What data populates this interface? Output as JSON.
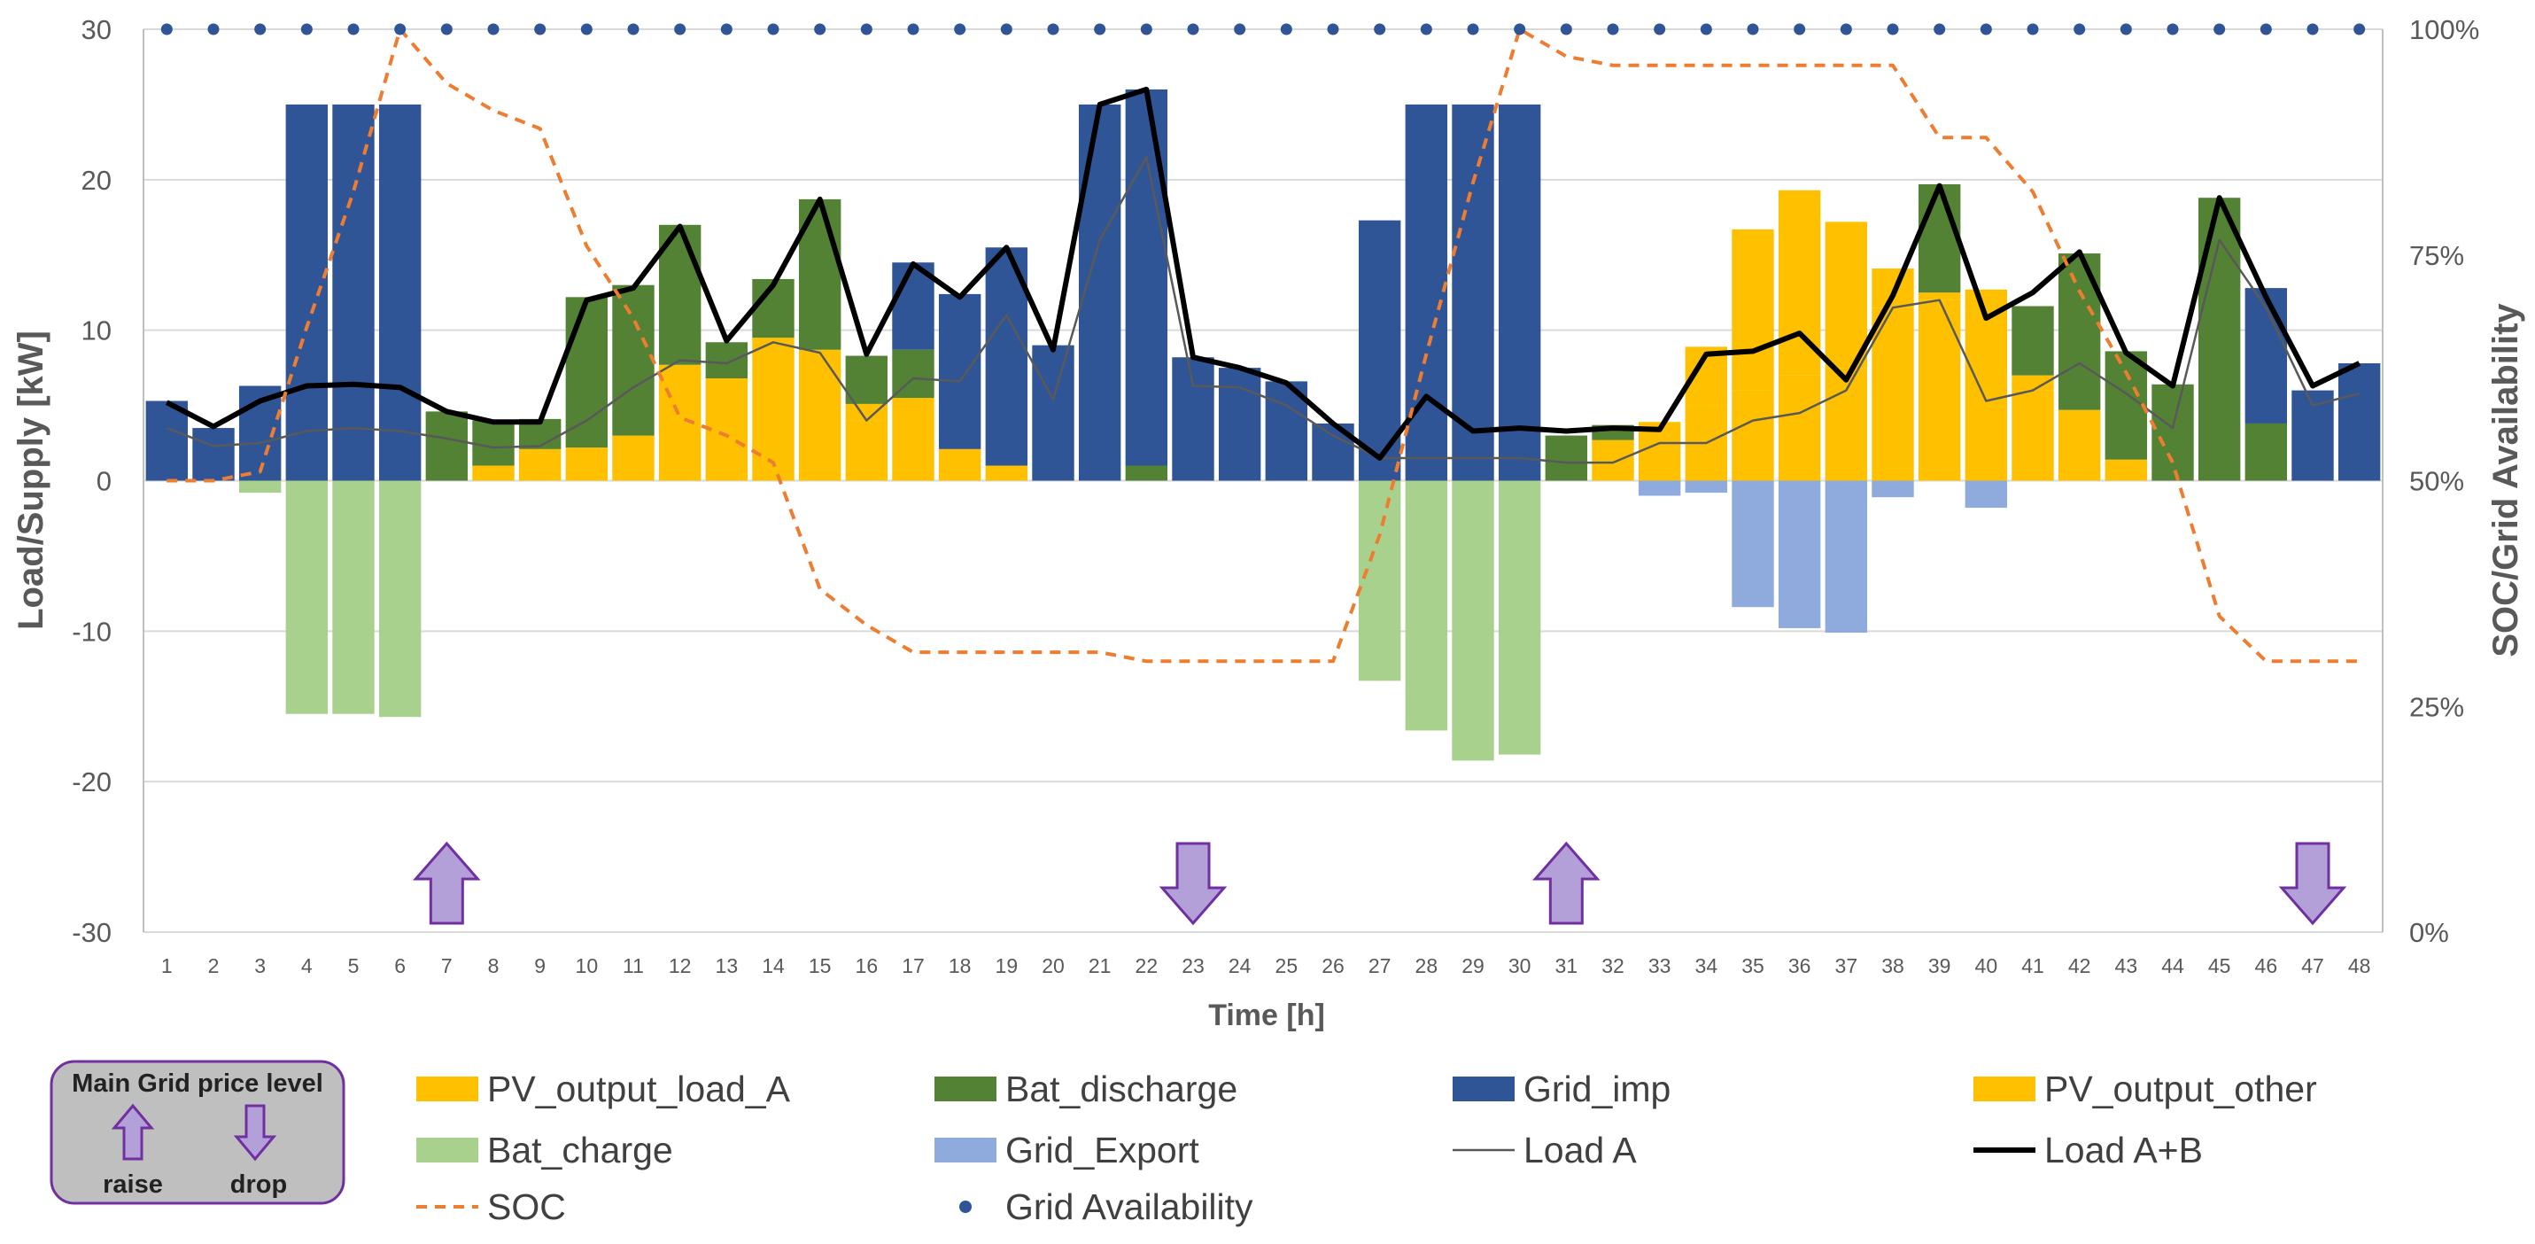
{
  "chart_data": {
    "type": "bar",
    "xlabel": "Time [h]",
    "ylabel": "Load/Supply [kW]",
    "y2label": "SOC/Grid Availability",
    "ylim": [
      -30,
      30
    ],
    "y2lim": [
      0,
      100
    ],
    "y_ticks": [
      "-30",
      "-20",
      "-10",
      "0",
      "10",
      "20",
      "30"
    ],
    "y2_ticks": [
      "0%",
      "25%",
      "50%",
      "75%",
      "100%"
    ],
    "categories": [
      "1",
      "2",
      "3",
      "4",
      "5",
      "6",
      "7",
      "8",
      "9",
      "10",
      "11",
      "12",
      "13",
      "14",
      "15",
      "16",
      "17",
      "18",
      "19",
      "20",
      "21",
      "22",
      "23",
      "24",
      "25",
      "26",
      "27",
      "28",
      "29",
      "30",
      "31",
      "32",
      "33",
      "34",
      "35",
      "36",
      "37",
      "38",
      "39",
      "40",
      "41",
      "42",
      "43",
      "44",
      "45",
      "46",
      "47",
      "48"
    ],
    "stack_positive": [
      {
        "name": "PV_output_load_A",
        "color": "#FFC000",
        "values": [
          0,
          0,
          0,
          0,
          0,
          0,
          0,
          1,
          1.8,
          2.2,
          3,
          7.7,
          6.8,
          9.5,
          8.7,
          4,
          5.5,
          2.1,
          1,
          0,
          0,
          0,
          0,
          0,
          0,
          0,
          0,
          0,
          0,
          0,
          0,
          1.5,
          3,
          5,
          6,
          7,
          7.5,
          11.5,
          12,
          11.3,
          6,
          4.7,
          1.4,
          0,
          0,
          0,
          0,
          0
        ]
      },
      {
        "name": "PV_output_other",
        "color": "#FFC000",
        "values": [
          0,
          0,
          0,
          0,
          0,
          0,
          0,
          0,
          0.3,
          0,
          0,
          0,
          0,
          0,
          0,
          1.1,
          0,
          0,
          0,
          0,
          0,
          0,
          0,
          0,
          0,
          0,
          0,
          0,
          0,
          0,
          0,
          1.2,
          0.9,
          3.9,
          10.7,
          12.3,
          9.7,
          2.6,
          0.5,
          1.4,
          1,
          0,
          0,
          0,
          0,
          0,
          0,
          0
        ]
      },
      {
        "name": "Bat_discharge",
        "color": "#548235",
        "values": [
          0,
          0,
          0,
          0,
          0,
          0,
          4.6,
          3,
          2,
          10,
          10,
          9.3,
          2.4,
          3.9,
          10,
          3.2,
          3.2,
          0,
          0,
          0,
          0,
          1,
          0,
          0,
          0,
          0,
          0,
          0,
          0,
          0,
          3,
          1,
          0,
          0,
          0,
          0,
          0,
          0,
          7.2,
          0,
          4.6,
          10.4,
          7.2,
          6.4,
          18.8,
          3.8,
          0,
          0
        ]
      },
      {
        "name": "Grid_imp",
        "color": "#2F5597",
        "values": [
          5.3,
          3.5,
          6.3,
          25,
          25,
          25,
          0,
          0,
          0,
          0,
          0,
          0,
          0,
          0,
          0,
          0,
          5.8,
          10.3,
          14.5,
          9,
          25,
          25,
          8.2,
          7.5,
          6.6,
          3.8,
          17.3,
          25,
          25,
          25,
          0,
          0,
          0,
          0,
          0,
          0,
          0,
          0,
          0,
          0,
          0,
          0,
          0,
          0,
          0,
          9,
          6,
          7.8
        ]
      }
    ],
    "stack_negative": [
      {
        "name": "Bat_charge",
        "color": "#A9D18E",
        "values": [
          0,
          0,
          -0.8,
          -15.5,
          -15.5,
          -15.7,
          0,
          0,
          0,
          0,
          0,
          0,
          0,
          0,
          0,
          0,
          0,
          0,
          0,
          0,
          0,
          0,
          0,
          0,
          0,
          0,
          -13.3,
          -16.6,
          -18.6,
          -18.2,
          0,
          0,
          0,
          0,
          0,
          0,
          0,
          0,
          0,
          0,
          0,
          0,
          0,
          0,
          0,
          0,
          0,
          0
        ]
      },
      {
        "name": "Grid_Export",
        "color": "#8FAADC",
        "values": [
          0,
          0,
          0,
          0,
          0,
          0,
          0,
          0,
          0,
          0,
          0,
          0,
          0,
          0,
          0,
          0,
          0,
          0,
          0,
          0,
          0,
          0,
          0,
          0,
          0,
          0,
          0,
          0,
          0,
          0,
          0,
          0,
          -1,
          -0.8,
          -8.4,
          -9.8,
          -10.1,
          -1.1,
          0,
          -1.8,
          0,
          0,
          0,
          0,
          0,
          0,
          0,
          0
        ]
      }
    ],
    "lines": [
      {
        "name": "Load A",
        "color": "#595959",
        "axis": "left",
        "values": [
          3.5,
          2.3,
          2.5,
          3.3,
          3.5,
          3.3,
          2.8,
          2.2,
          2.3,
          4,
          6.2,
          8,
          7.8,
          9.2,
          8.5,
          4,
          6.8,
          6.6,
          11,
          5.4,
          16,
          21.5,
          6.3,
          6.2,
          5,
          3,
          1.5,
          1.5,
          1.5,
          1.5,
          1.2,
          1.2,
          2.5,
          2.5,
          4,
          4.5,
          6,
          11.5,
          12,
          5.3,
          6,
          7.8,
          5.8,
          3.5,
          16,
          11.5,
          5,
          5.8
        ]
      },
      {
        "name": "Load A+B",
        "color": "#000000",
        "axis": "left",
        "values": [
          5.2,
          3.6,
          5.3,
          6.3,
          6.4,
          6.2,
          4.6,
          3.9,
          3.9,
          12,
          12.8,
          16.9,
          9.3,
          13,
          18.7,
          8.4,
          14.4,
          12.2,
          15.5,
          8.7,
          25,
          26,
          8.2,
          7.5,
          6.5,
          3.8,
          1.5,
          5.6,
          3.3,
          3.5,
          3.3,
          3.5,
          3.4,
          8.4,
          8.6,
          9.8,
          6.7,
          12.3,
          19.6,
          10.8,
          12.5,
          15.2,
          8.5,
          6.3,
          18.8,
          12.2,
          6.3,
          7.8
        ]
      },
      {
        "name": "SOC",
        "color": "#ED7D31",
        "axis": "right",
        "dashed": true,
        "values": [
          50,
          50,
          51,
          67,
          82,
          100,
          94,
          91,
          89,
          76,
          68,
          57,
          55,
          52,
          38,
          34,
          31,
          31,
          31,
          31,
          31,
          30,
          30,
          30,
          30,
          30,
          44,
          64,
          83,
          100,
          97,
          96,
          96,
          96,
          96,
          96,
          96,
          96,
          88,
          88,
          82,
          71,
          62,
          52,
          35,
          30,
          30,
          30
        ]
      },
      {
        "name": "Grid Availability",
        "color": "#2F5597",
        "axis": "right",
        "markers_only": true,
        "values": [
          100,
          100,
          100,
          100,
          100,
          100,
          100,
          100,
          100,
          100,
          100,
          100,
          100,
          100,
          100,
          100,
          100,
          100,
          100,
          100,
          100,
          100,
          100,
          100,
          100,
          100,
          100,
          100,
          100,
          100,
          100,
          100,
          100,
          100,
          100,
          100,
          100,
          100,
          100,
          100,
          100,
          100,
          100,
          100,
          100,
          100,
          100,
          100
        ]
      }
    ],
    "price_arrows": [
      {
        "x": 7,
        "direction": "raise"
      },
      {
        "x": 23,
        "direction": "drop"
      },
      {
        "x": 31,
        "direction": "raise"
      },
      {
        "x": 47,
        "direction": "drop"
      }
    ],
    "legend": {
      "position": "bottom",
      "items": [
        {
          "name": "PV_output_load_A",
          "kind": "box",
          "color": "#FFC000"
        },
        {
          "name": "Bat_discharge",
          "kind": "box",
          "color": "#548235"
        },
        {
          "name": "Grid_imp",
          "kind": "box",
          "color": "#2F5597"
        },
        {
          "name": "PV_output_other",
          "kind": "box",
          "color": "#FFC000"
        },
        {
          "name": "Bat_charge",
          "kind": "box",
          "color": "#A9D18E"
        },
        {
          "name": "Grid_Export",
          "kind": "box",
          "color": "#8FAADC"
        },
        {
          "name": "Load A",
          "kind": "line",
          "color": "#595959"
        },
        {
          "name": "Load A+B",
          "kind": "thickline",
          "color": "#000000"
        },
        {
          "name": "SOC",
          "kind": "dash",
          "color": "#ED7D31"
        },
        {
          "name": "Grid Availability",
          "kind": "dot",
          "color": "#2F5597"
        }
      ]
    },
    "price_box": {
      "title": "Main Grid price level",
      "raise_label": "raise",
      "drop_label": "drop",
      "fill": "#BFBFBF",
      "arrow_color": "#B4A0D8",
      "arrow_border": "#7030A0"
    }
  }
}
